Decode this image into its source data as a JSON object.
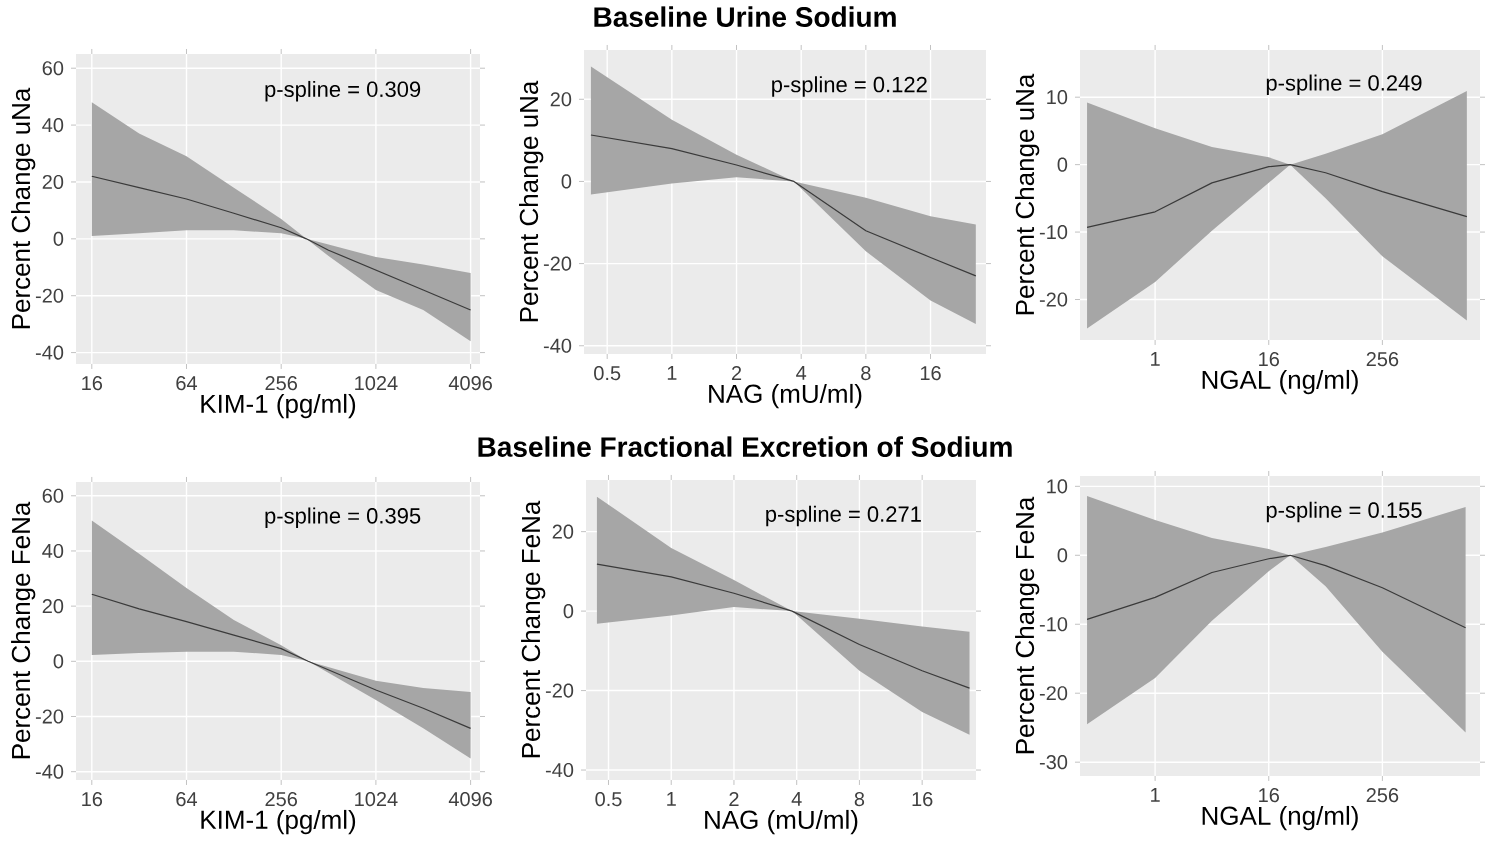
{
  "chart_data": [
    {
      "type": "line",
      "xlabel": "KIM-1 (pg/ml)",
      "ylabel": "Percent Change uNa",
      "log": "x",
      "grid": true,
      "xlim": [
        12.7,
        4700
      ],
      "xticks": [
        16,
        64,
        256,
        1024,
        4096
      ],
      "ylim": [
        -44,
        65
      ],
      "yticks": [
        -40,
        -20,
        0,
        20,
        40,
        60
      ],
      "annotations": [
        "p-spline = 0.309"
      ],
      "series": [
        {
          "color": "#3a3a3a",
          "x": [
            16,
            32,
            64,
            128,
            256,
            370,
            512,
            1024,
            2048,
            4096
          ],
          "values": [
            22,
            18,
            14,
            9,
            3.9,
            0,
            -4,
            -11,
            -18,
            -25
          ],
          "upper": [
            48,
            37,
            29,
            18,
            7,
            0,
            -2,
            -6.4,
            -9,
            -12
          ],
          "lower": [
            1,
            2,
            3,
            3,
            2,
            0,
            -6,
            -18,
            -25,
            -36
          ]
        }
      ]
    },
    {
      "type": "line",
      "title": "Baseline Urine Sodium",
      "xlabel": "NAG (mU/ml)",
      "ylabel": "Percent Change uNa",
      "log": "x",
      "grid": true,
      "xlim": [
        0.39,
        29
      ],
      "xticks": [
        0.5,
        1,
        2,
        4,
        8,
        16
      ],
      "ylim": [
        -42,
        32
      ],
      "yticks": [
        -40,
        -20,
        0,
        20
      ],
      "annotations": [
        "p-spline = 0.122"
      ],
      "series": [
        {
          "color": "#3a3a3a",
          "x": [
            0.42,
            1,
            2,
            3.7,
            8,
            16,
            26
          ],
          "values": [
            11.3,
            8,
            4,
            0,
            -12,
            -18.5,
            -23
          ],
          "upper": [
            28,
            15,
            6.5,
            0,
            -4,
            -8.5,
            -10.5
          ],
          "lower": [
            -3.2,
            -0.5,
            1,
            0,
            -17,
            -29,
            -34.7
          ]
        }
      ]
    },
    {
      "type": "line",
      "xlabel": "NGAL (ng/ml)",
      "ylabel": "Percent Change uNa",
      "log": "x",
      "grid": true,
      "xlim": [
        0.16,
        2770
      ],
      "xticks": [
        1,
        16,
        256
      ],
      "ylim": [
        -26,
        17
      ],
      "yticks": [
        -20,
        -10,
        0,
        10
      ],
      "annotations": [
        "p-spline = 0.249"
      ],
      "series": [
        {
          "color": "#3a3a3a",
          "x": [
            0.19,
            1,
            4,
            16,
            27,
            64,
            256,
            2010
          ],
          "values": [
            -9.3,
            -7,
            -2.7,
            -0.3,
            0,
            -1.2,
            -4,
            -7.7
          ],
          "upper": [
            9.2,
            5.4,
            2.6,
            1.1,
            0,
            1.6,
            4.5,
            10.9
          ],
          "lower": [
            -24.3,
            -17.4,
            -9.8,
            -2.7,
            0,
            -5,
            -13.6,
            -23.1
          ]
        }
      ]
    },
    {
      "type": "line",
      "xlabel": "KIM-1 (pg/ml)",
      "ylabel": "Percent Change FeNa",
      "log": "x",
      "grid": true,
      "xlim": [
        12.7,
        4700
      ],
      "xticks": [
        16,
        64,
        256,
        1024,
        4096
      ],
      "ylim": [
        -43,
        65
      ],
      "yticks": [
        -40,
        -20,
        0,
        20,
        40,
        60
      ],
      "annotations": [
        "p-spline = 0.395"
      ],
      "series": [
        {
          "color": "#3a3a3a",
          "x": [
            16,
            32,
            64,
            128,
            256,
            380,
            1024,
            2048,
            4096
          ],
          "values": [
            24.3,
            19,
            14.4,
            9.5,
            4.6,
            0,
            -10.4,
            -17,
            -24.3
          ],
          "upper": [
            51,
            39,
            26.6,
            15,
            5.8,
            0,
            -7,
            -9.7,
            -11.1
          ],
          "lower": [
            2.3,
            3,
            3.5,
            3.5,
            2.3,
            0,
            -14,
            -24.3,
            -35.2
          ]
        }
      ]
    },
    {
      "type": "line",
      "title": "Baseline Fractional Excretion of Sodium",
      "xlabel": "NAG (mU/ml)",
      "ylabel": "Percent Change FeNa",
      "log": "x",
      "grid": true,
      "xlim": [
        0.39,
        29
      ],
      "xticks": [
        0.5,
        1,
        2,
        4,
        8,
        16
      ],
      "ylim": [
        -42.5,
        33
      ],
      "yticks": [
        -40,
        -20,
        0,
        20
      ],
      "annotations": [
        "p-spline = 0.271"
      ],
      "series": [
        {
          "color": "#3a3a3a",
          "x": [
            0.44,
            1,
            2,
            3.8,
            8,
            16,
            27
          ],
          "values": [
            11.8,
            8.6,
            4.5,
            0,
            -8.4,
            -15,
            -19.4
          ],
          "upper": [
            28.8,
            15.9,
            7.8,
            0,
            -1.9,
            -3.9,
            -5.2
          ],
          "lower": [
            -3.2,
            -1.1,
            1,
            0,
            -15,
            -25.4,
            -31.1
          ]
        }
      ]
    },
    {
      "type": "line",
      "xlabel": "NGAL (ng/ml)",
      "ylabel": "Percent Change FeNa",
      "log": "x",
      "grid": true,
      "xlim": [
        0.16,
        2770
      ],
      "xticks": [
        1,
        16,
        256
      ],
      "ylim": [
        -32,
        11.5
      ],
      "yticks": [
        -30,
        -20,
        -10,
        0,
        10
      ],
      "annotations": [
        "p-spline = 0.155"
      ],
      "series": [
        {
          "color": "#3a3a3a",
          "x": [
            0.19,
            1,
            4,
            16,
            27,
            64,
            256,
            1950
          ],
          "values": [
            -9.3,
            -6.1,
            -2.5,
            -0.5,
            0,
            -1.5,
            -4.7,
            -10.5
          ],
          "upper": [
            8.6,
            5.1,
            2.5,
            0.9,
            0,
            1.2,
            3.3,
            7
          ],
          "lower": [
            -24.5,
            -17.8,
            -9.5,
            -2.3,
            0,
            -4.5,
            -14,
            -25.7
          ]
        }
      ]
    }
  ]
}
